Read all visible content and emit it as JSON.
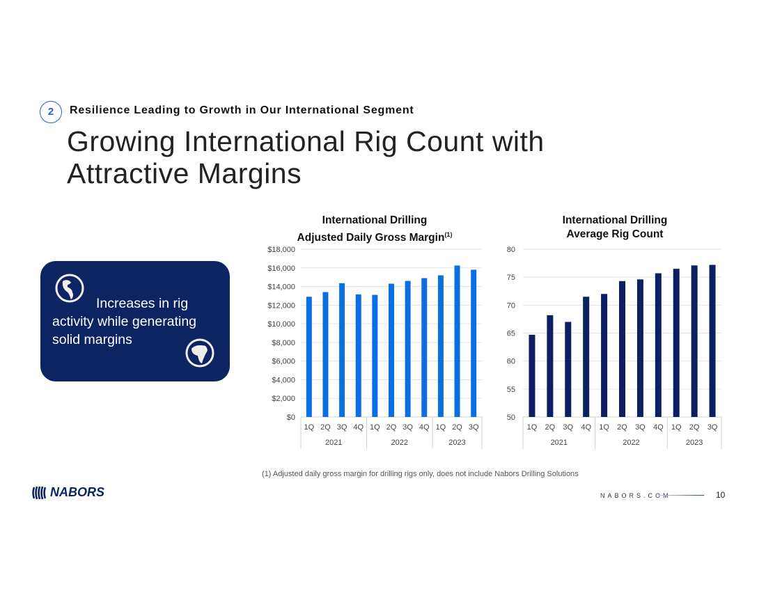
{
  "header": {
    "section_number": "2",
    "section_title": "Resilience Leading to Growth in Our International Segment",
    "title": "Growing International Rig Count with Attractive Margins"
  },
  "callout": {
    "text": "Increases in rig activity while generating solid margins",
    "icons": [
      "globe-americas-icon",
      "globe-africa-icon"
    ],
    "bg_color": "#0c2461"
  },
  "chart_data": [
    {
      "type": "bar",
      "title_line1": "International Drilling",
      "title_line2": "Adjusted Daily Gross Margin",
      "title_sup": "(1)",
      "categories": [
        "1Q",
        "2Q",
        "3Q",
        "4Q",
        "1Q",
        "2Q",
        "3Q",
        "4Q",
        "1Q",
        "2Q",
        "3Q"
      ],
      "groups": [
        {
          "label": "2021",
          "count": 4
        },
        {
          "label": "2022",
          "count": 4
        },
        {
          "label": "2023",
          "count": 3
        }
      ],
      "values": [
        12900,
        13400,
        14350,
        13150,
        13100,
        14300,
        14600,
        14900,
        15200,
        16250,
        15800
      ],
      "ylim": [
        0,
        18000
      ],
      "yticks": [
        0,
        2000,
        4000,
        6000,
        8000,
        10000,
        12000,
        14000,
        16000,
        18000
      ],
      "ytick_labels": [
        "$0",
        "$2,000",
        "$4,000",
        "$6,000",
        "$8,000",
        "$10,000",
        "$12,000",
        "$14,000",
        "$16,000",
        "$18,000"
      ],
      "color": "#0a6fe0",
      "grid": true
    },
    {
      "type": "bar",
      "title_line1": "International Drilling",
      "title_line2": "Average Rig Count",
      "categories": [
        "1Q",
        "2Q",
        "3Q",
        "4Q",
        "1Q",
        "2Q",
        "3Q",
        "4Q",
        "1Q",
        "2Q",
        "3Q"
      ],
      "groups": [
        {
          "label": "2021",
          "count": 4
        },
        {
          "label": "2022",
          "count": 4
        },
        {
          "label": "2023",
          "count": 3
        }
      ],
      "values": [
        64.7,
        68.2,
        67.0,
        71.5,
        72.0,
        74.3,
        74.6,
        75.7,
        76.5,
        77.1,
        77.2
      ],
      "ylim": [
        50,
        80
      ],
      "yticks": [
        50,
        55,
        60,
        65,
        70,
        75,
        80
      ],
      "ytick_labels": [
        "50",
        "55",
        "60",
        "65",
        "70",
        "75",
        "80"
      ],
      "color": "#0c1f63",
      "grid": true
    }
  ],
  "footer": {
    "footnote": "(1)  Adjusted daily gross margin for drilling rigs only, does not include Nabors Drilling Solutions",
    "logo_text": "NABORS",
    "site": "NABORS.COM",
    "page_number": "10"
  }
}
